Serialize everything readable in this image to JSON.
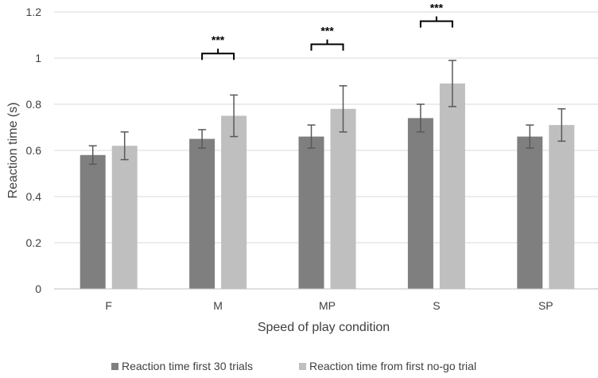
{
  "chart_data": {
    "type": "bar",
    "title": "",
    "xlabel": "Speed of play condition",
    "ylabel": "Reaction time (s)",
    "ylim": [
      0,
      1.2
    ],
    "yticks": [
      0,
      0.2,
      0.4,
      0.6,
      0.8,
      1,
      1.2
    ],
    "ytick_labels": [
      "0",
      "0.2",
      "0.4",
      "0.6",
      "0.8",
      "1",
      "1.2"
    ],
    "grid": true,
    "legend_position": "bottom",
    "categories": [
      "F",
      "M",
      "MP",
      "S",
      "SP"
    ],
    "series": [
      {
        "name": "Reaction time first 30 trials",
        "color": "#7f7f7f",
        "values": [
          0.58,
          0.65,
          0.66,
          0.74,
          0.66
        ],
        "error": [
          0.04,
          0.04,
          0.05,
          0.06,
          0.05
        ]
      },
      {
        "name": "Reaction time from first no-go trial",
        "color": "#bfbfbf",
        "values": [
          0.62,
          0.75,
          0.78,
          0.89,
          0.71
        ],
        "error": [
          0.06,
          0.09,
          0.1,
          0.1,
          0.07
        ]
      }
    ],
    "annotations": [
      {
        "category": "M",
        "text": "***",
        "level": 1.02
      },
      {
        "category": "MP",
        "text": "***",
        "level": 1.06
      },
      {
        "category": "S",
        "text": "***",
        "level": 1.16
      }
    ]
  }
}
